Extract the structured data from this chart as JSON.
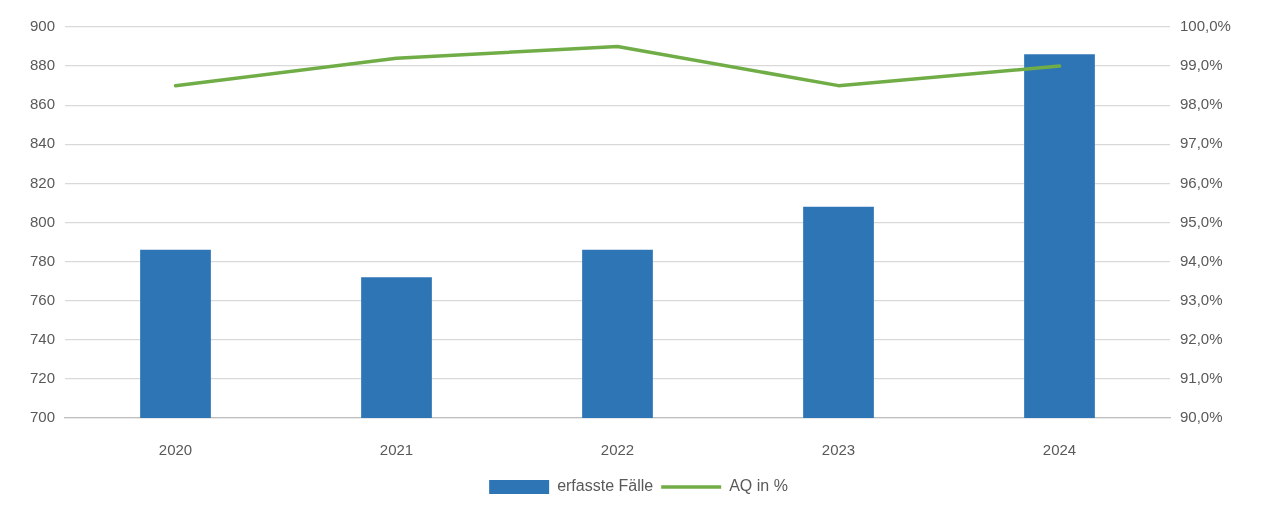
{
  "chart_data": {
    "type": "bar",
    "categories": [
      "2020",
      "2021",
      "2022",
      "2023",
      "2024"
    ],
    "series": [
      {
        "name": "erfasste Fälle",
        "color": "#2e75b6",
        "values": [
          786,
          772,
          786,
          808,
          886
        ]
      },
      {
        "name": "AQ in %",
        "type": "line",
        "axis": "y2",
        "color": "#70ad47",
        "marker": "none",
        "line_style": "solid",
        "values": [
          98.5,
          99.2,
          99.5,
          98.5,
          99.0
        ]
      }
    ],
    "ylim": [
      700,
      900
    ],
    "yticks": [
      700,
      720,
      740,
      760,
      780,
      800,
      820,
      840,
      860,
      880,
      900
    ],
    "y2lim": [
      90,
      100
    ],
    "y2ticks": [
      {
        "value": 90,
        "label": "90,0%"
      },
      {
        "value": 91,
        "label": "91,0%"
      },
      {
        "value": 92,
        "label": "92,0%"
      },
      {
        "value": 93,
        "label": "93,0%"
      },
      {
        "value": 94,
        "label": "94,0%"
      },
      {
        "value": 95,
        "label": "95,0%"
      },
      {
        "value": 96,
        "label": "96,0%"
      },
      {
        "value": 97,
        "label": "97,0%"
      },
      {
        "value": 98,
        "label": "98,0%"
      },
      {
        "value": 99,
        "label": "99,0%"
      },
      {
        "value": 100,
        "label": "100,0%"
      }
    ],
    "grid": "y",
    "legend": "bottom"
  }
}
